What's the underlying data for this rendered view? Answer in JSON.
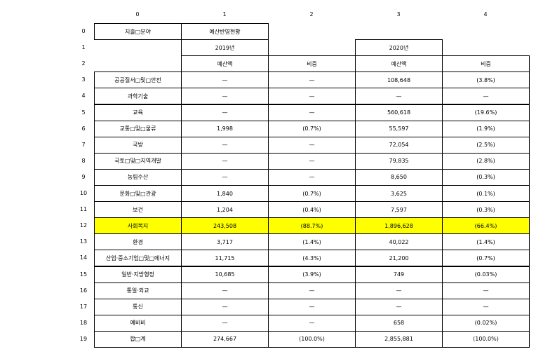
{
  "colors": {
    "highlight": "#ffff00",
    "border": "#000000",
    "background": "#ffffff"
  },
  "column_headers": [
    "0",
    "1",
    "2",
    "3",
    "4"
  ],
  "row_headers": [
    "0",
    "1",
    "2",
    "3",
    "4",
    "5",
    "6",
    "7",
    "8",
    "9",
    "10",
    "11",
    "12",
    "13",
    "14",
    "15",
    "16",
    "17",
    "18",
    "19"
  ],
  "header_cells": [
    {
      "row": 0,
      "col": 0,
      "text": "지출□분야"
    },
    {
      "row": 0,
      "col": 1,
      "text": "예산반영현황"
    },
    {
      "row": 1,
      "col": 1,
      "text": "2019년"
    },
    {
      "row": 1,
      "col": 3,
      "text": "2020년"
    },
    {
      "row": 2,
      "col": 1,
      "text": "예산액"
    },
    {
      "row": 2,
      "col": 2,
      "text": "비중"
    },
    {
      "row": 2,
      "col": 3,
      "text": "예산액"
    },
    {
      "row": 2,
      "col": 4,
      "text": "비중"
    }
  ],
  "highlight_row": 12,
  "rows": [
    [
      "공공질서□및□안전",
      "—",
      "—",
      "108,648",
      "(3.8%)"
    ],
    [
      "과학기술",
      "—",
      "—",
      "—",
      "—"
    ],
    [
      "교육",
      "—",
      "—",
      "560,618",
      "(19.6%)"
    ],
    [
      "교통□및□물류",
      "1,998",
      "(0.7%)",
      "55,597",
      "(1.9%)"
    ],
    [
      "국방",
      "—",
      "—",
      "72,054",
      "(2.5%)"
    ],
    [
      "국토□및□지역개발",
      "—",
      "—",
      "79,835",
      "(2.8%)"
    ],
    [
      "농림수산",
      "—",
      "—",
      "8,650",
      "(0.3%)"
    ],
    [
      "문화□및□관광",
      "1,840",
      "(0.7%)",
      "3,625",
      "(0.1%)"
    ],
    [
      "보건",
      "1,204",
      "(0.4%)",
      "7,597",
      "(0.3%)"
    ],
    [
      "사회복지",
      "243,508",
      "(88.7%)",
      "1,896,628",
      "(66.4%)"
    ],
    [
      "환경",
      "3,717",
      "(1.4%)",
      "40,022",
      "(1.4%)"
    ],
    [
      "산업·중소기업□및□에너지",
      "11,715",
      "(4.3%)",
      "21,200",
      "(0.7%)"
    ],
    [
      "일반·지방행정",
      "10,685",
      "(3.9%)",
      "749",
      "(0.03%)"
    ],
    [
      "통일·외교",
      "—",
      "—",
      "—",
      "—"
    ],
    [
      "통신",
      "—",
      "—",
      "—",
      "—"
    ],
    [
      "예비비",
      "—",
      "—",
      "658",
      "(0.02%)"
    ],
    [
      "합□계",
      "274,667",
      "(100.0%)",
      "2,855,881",
      "(100.0%)"
    ]
  ]
}
